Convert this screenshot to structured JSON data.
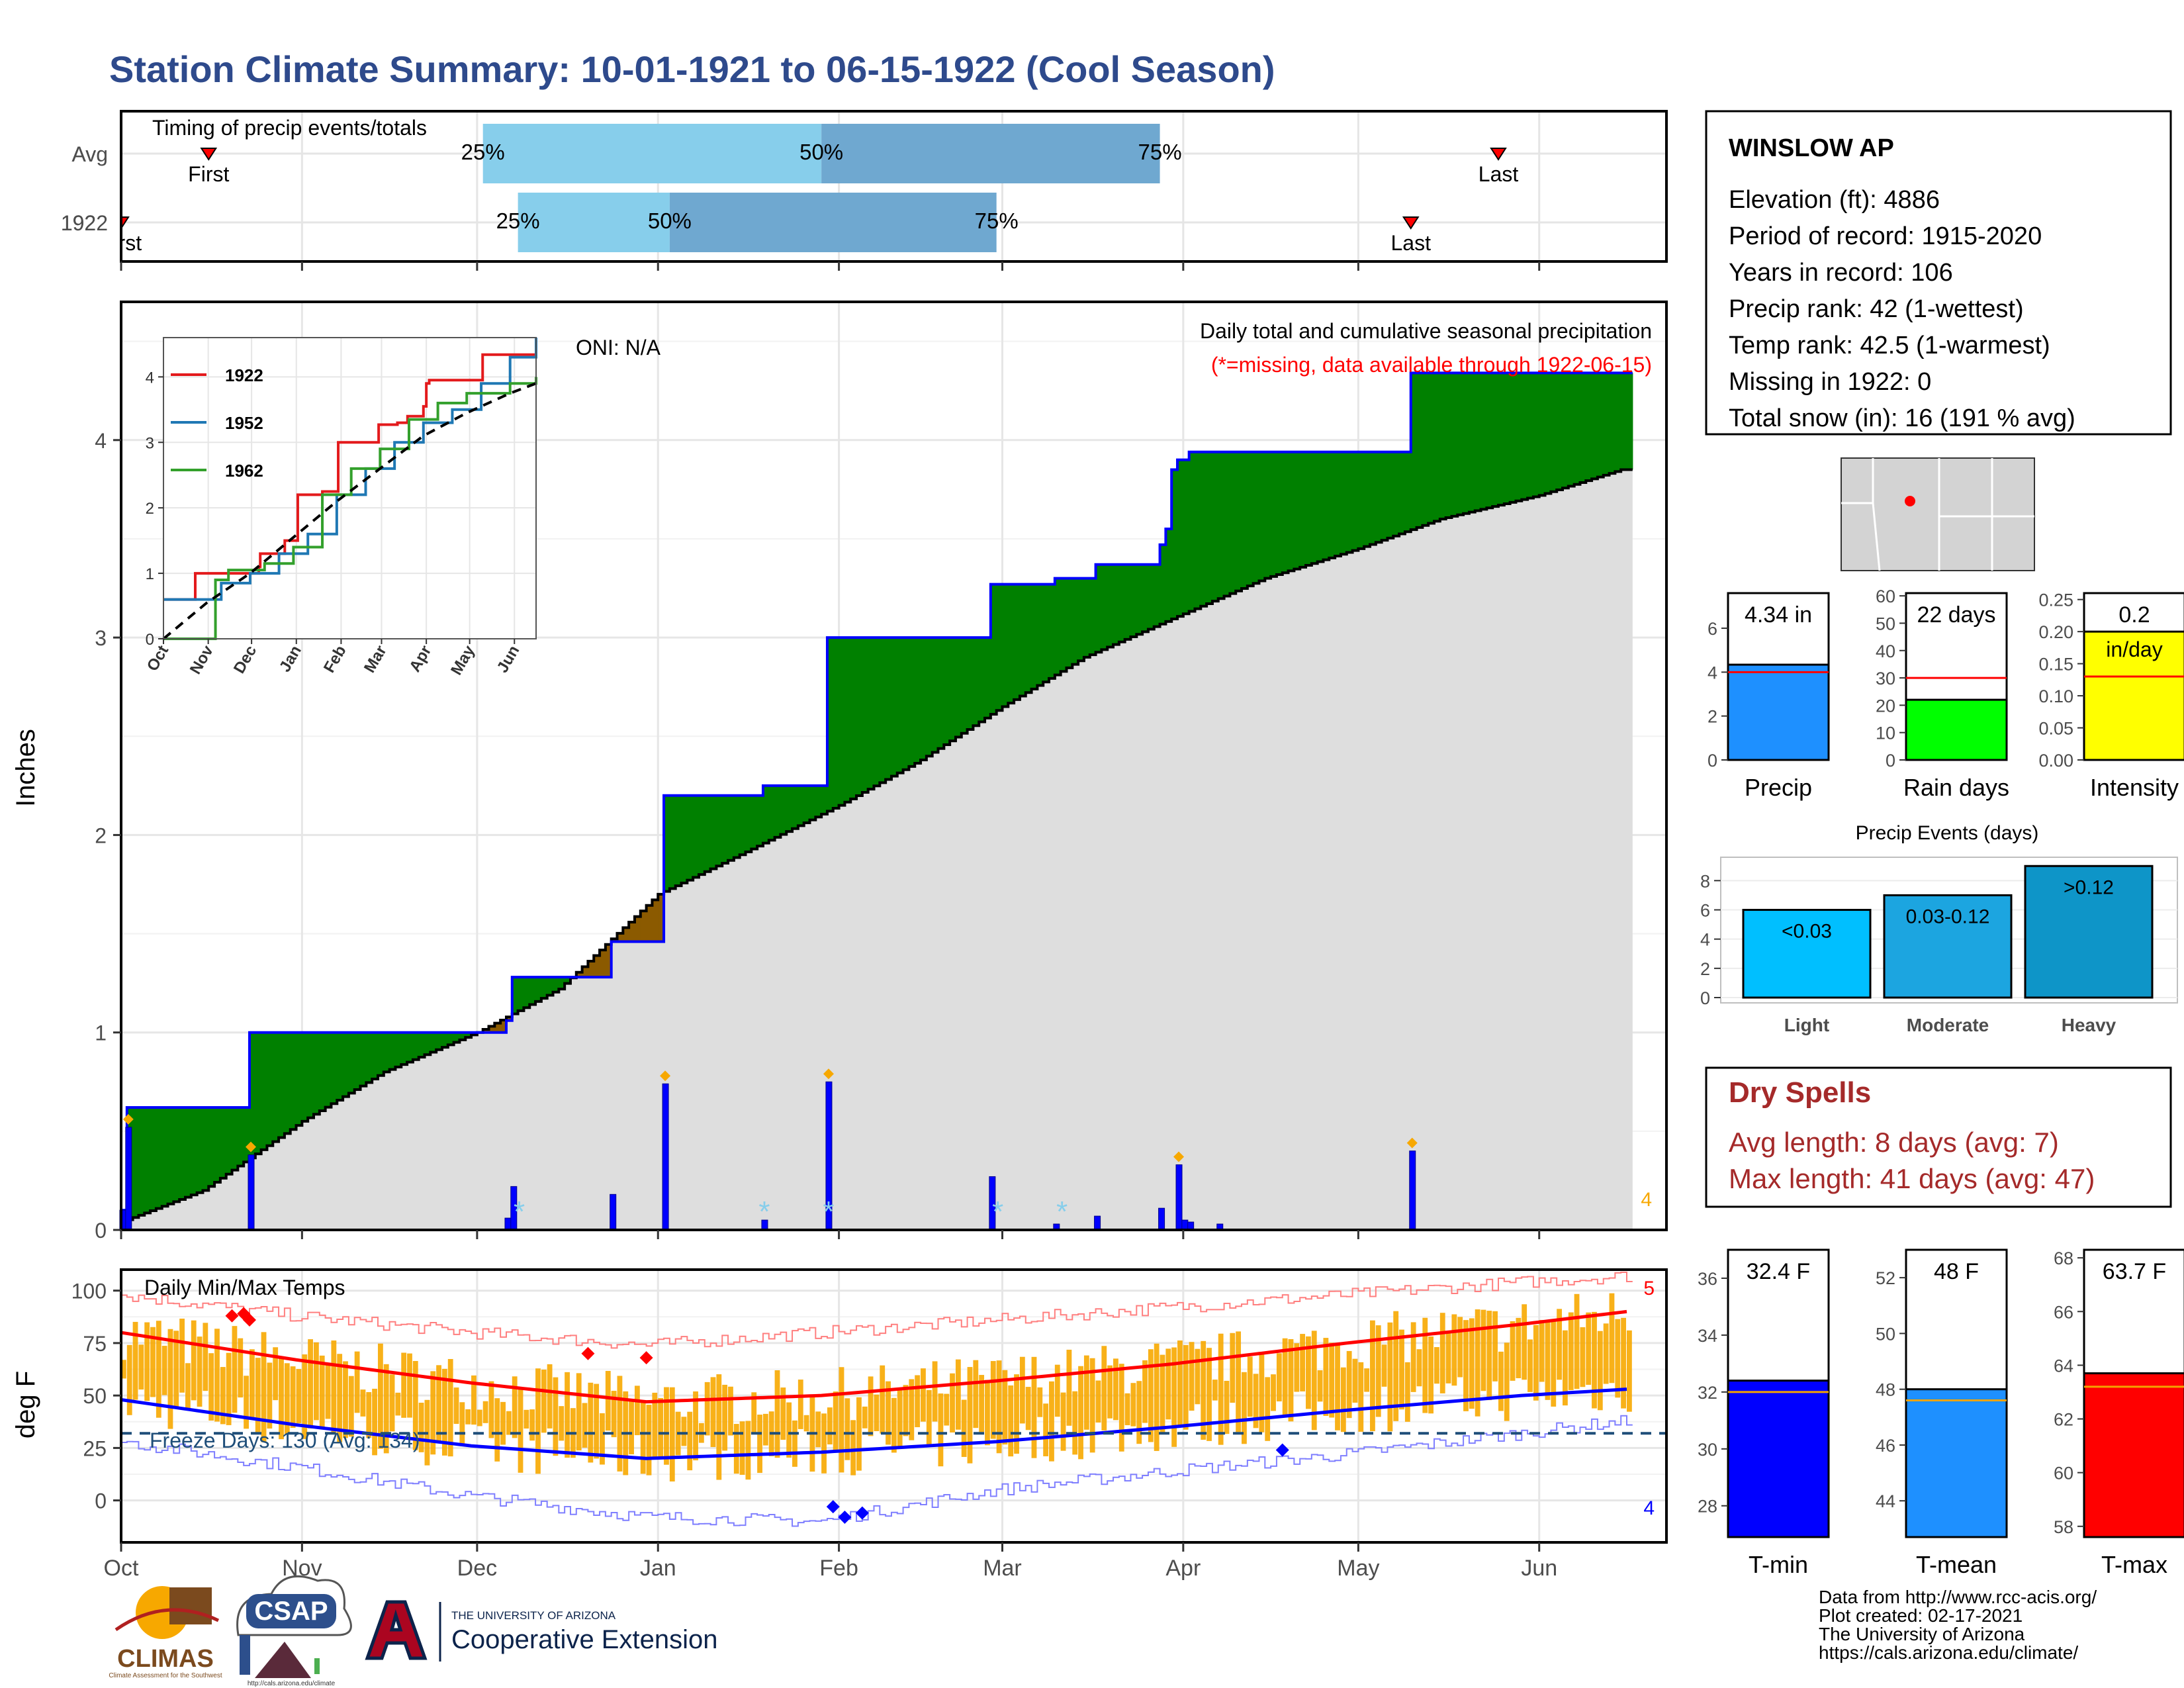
{
  "title": "Station Climate Summary: 10-01-1921 to 06-15-1922 (Cool Season)",
  "colors": {
    "title": "#2e4a8c",
    "green": "#008000",
    "brown": "#8b5a00",
    "blue": "#0000ff",
    "red": "#ff0000",
    "orange": "#f7a800",
    "light_blue": "#87ceeb",
    "steel_blue": "#6fa8d0",
    "dry_spell": "#a52a2a",
    "grey_fill": "#dedede"
  },
  "timing": {
    "caption": "Timing of precip events/totals",
    "rows": [
      {
        "label": "Avg",
        "first_label": "First",
        "last_label": "Last",
        "first_date": "1921-10-16",
        "last_date": "1922-05-25",
        "p25_date": "1921-12-02",
        "p50_date": "1922-01-29",
        "p75_date": "1922-03-28",
        "p25": "25%",
        "p50": "50%",
        "p75": "75%"
      },
      {
        "label": "1922",
        "first_label": "First",
        "last_label": "Last",
        "first_date": "1921-10-01",
        "last_date": "1922-05-10",
        "p25_date": "1921-12-08",
        "p50_date": "1922-01-03",
        "p75_date": "1922-02-28",
        "p25": "25%",
        "p50": "50%",
        "p75": "75%"
      }
    ]
  },
  "station": {
    "name": "WINSLOW AP",
    "lines": [
      "Elevation (ft): 4886",
      "Period of record: 1915-2020",
      "Years in record: 106",
      "Precip rank: 42 (1-wettest)",
      "Temp rank: 42.5 (1-warmest)",
      "Missing in 1922: 0",
      "Total snow (in): 16 (191 % avg)"
    ]
  },
  "precip_panel": {
    "ylabel": "Inches",
    "oni": "ONI: N/A",
    "caption": "Daily total and cumulative seasonal precipitation",
    "missing_note": "(*=missing, data available through 1922-06-15)",
    "corner_number": "4",
    "y_ticks": [
      "0",
      "1",
      "2",
      "3",
      "4"
    ],
    "x_months": [
      "Oct",
      "Nov",
      "Dec",
      "Jan",
      "Feb",
      "Mar",
      "Apr",
      "May",
      "Jun"
    ]
  },
  "inset": {
    "legend": [
      "1922",
      "1952",
      "1962"
    ],
    "y_ticks": [
      "0",
      "1",
      "2",
      "3",
      "4"
    ],
    "x_ticks": [
      "Oct",
      "Nov",
      "Dec",
      "Jan",
      "Feb",
      "Mar",
      "Apr",
      "May",
      "Jun"
    ]
  },
  "temp_panel": {
    "ylabel": "deg F",
    "caption": "Daily Min/Max Temps",
    "freeze": "Freeze Days: 130 (Avg: 134)",
    "corner_top": "5",
    "corner_bottom": "4",
    "y_ticks": [
      "0",
      "25",
      "50",
      "75",
      "100"
    ]
  },
  "summary_bars": {
    "precip": {
      "label": "Precip",
      "value_text": "4.34 in",
      "ticks": [
        "0",
        "2",
        "4",
        "6"
      ]
    },
    "rain_days": {
      "label": "Rain days",
      "value_text": "22 days",
      "ticks": [
        "0",
        "10",
        "20",
        "30",
        "40",
        "50",
        "60"
      ]
    },
    "intensity": {
      "label": "Intensity",
      "value_text": "0.2",
      "unit": "in/day",
      "ticks": [
        "0.00",
        "0.05",
        "0.10",
        "0.15",
        "0.20",
        "0.25"
      ]
    }
  },
  "events": {
    "title": "Precip Events (days)",
    "ticks": [
      "0",
      "2",
      "4",
      "6",
      "8"
    ],
    "bars": [
      {
        "label": "Light",
        "range": "<0.03"
      },
      {
        "label": "Moderate",
        "range": "0.03-0.12"
      },
      {
        "label": "Heavy",
        "range": ">0.12"
      }
    ]
  },
  "dry_spells": {
    "title": "Dry Spells",
    "avg": "Avg length: 8 days (avg: 7)",
    "max": "Max length: 41 days (avg: 47)"
  },
  "temp_bars": {
    "tmin": {
      "label": "T-min",
      "value_text": "32.4 F",
      "ticks": [
        "28",
        "30",
        "32",
        "34",
        "36"
      ]
    },
    "tmean": {
      "label": "T-mean",
      "value_text": "48 F",
      "ticks": [
        "44",
        "46",
        "48",
        "50",
        "52"
      ]
    },
    "tmax": {
      "label": "T-max",
      "value_text": "63.7 F",
      "ticks": [
        "58",
        "60",
        "62",
        "64",
        "66",
        "68"
      ]
    }
  },
  "footer": {
    "lines": [
      "Data from http://www.rcc-acis.org/",
      "Plot created: 02-17-2021",
      "The University of Arizona",
      "https://cals.arizona.edu/climate/"
    ],
    "logos": {
      "climas": "CLIMAS",
      "climas_sub": "Climate Assessment for the Southwest",
      "csap": "CSAP",
      "csap_sub": "http://cals.arizona.edu/climate",
      "ua_small": "THE UNIVERSITY OF ARIZONA",
      "ua_big": "Cooperative Extension"
    }
  },
  "chart_data": [
    {
      "type": "line",
      "title": "Daily total and cumulative seasonal precipitation",
      "ylabel": "Inches",
      "ylim": [
        0,
        4.7
      ],
      "x_start": "1921-10-01",
      "x_end": "1922-06-15",
      "cumulative_1922": [
        [
          "1921-10-01",
          0.1
        ],
        [
          "1921-10-02",
          0.62
        ],
        [
          "1921-10-23",
          1.0
        ],
        [
          "1921-12-06",
          1.06
        ],
        [
          "1921-12-07",
          1.28
        ],
        [
          "1921-12-24",
          1.46
        ],
        [
          "1922-01-02",
          2.2
        ],
        [
          "1922-01-19",
          2.25
        ],
        [
          "1922-01-30",
          3.0
        ],
        [
          "1922-02-27",
          3.27
        ],
        [
          "1922-03-10",
          3.3
        ],
        [
          "1922-03-17",
          3.37
        ],
        [
          "1922-03-28",
          3.47
        ],
        [
          "1922-03-29",
          3.55
        ],
        [
          "1922-03-30",
          3.85
        ],
        [
          "1922-03-31",
          3.9
        ],
        [
          "1922-04-02",
          3.94
        ],
        [
          "1922-05-10",
          4.34
        ],
        [
          "1922-06-15",
          4.34
        ]
      ],
      "cumulative_avg": [
        [
          "1921-10-01",
          0.04
        ],
        [
          "1921-10-15",
          0.2
        ],
        [
          "1921-11-01",
          0.55
        ],
        [
          "1921-11-15",
          0.8
        ],
        [
          "1921-12-01",
          1.0
        ],
        [
          "1921-12-15",
          1.22
        ],
        [
          "1922-01-01",
          1.7
        ],
        [
          "1922-01-15",
          1.9
        ],
        [
          "1922-02-01",
          2.15
        ],
        [
          "1922-02-15",
          2.38
        ],
        [
          "1922-03-01",
          2.65
        ],
        [
          "1922-03-15",
          2.9
        ],
        [
          "1922-04-01",
          3.12
        ],
        [
          "1922-04-15",
          3.3
        ],
        [
          "1922-05-01",
          3.45
        ],
        [
          "1922-05-15",
          3.6
        ],
        [
          "1922-06-01",
          3.72
        ],
        [
          "1922-06-15",
          3.85
        ]
      ],
      "daily_1922": [
        [
          "1921-10-01",
          0.1
        ],
        [
          "1921-10-02",
          0.52
        ],
        [
          "1921-10-23",
          0.38
        ],
        [
          "1921-12-06",
          0.06
        ],
        [
          "1921-12-07",
          0.22
        ],
        [
          "1921-12-24",
          0.18
        ],
        [
          "1922-01-02",
          0.74
        ],
        [
          "1922-01-19",
          0.05
        ],
        [
          "1922-01-30",
          0.75
        ],
        [
          "1922-02-27",
          0.27
        ],
        [
          "1922-03-10",
          0.03
        ],
        [
          "1922-03-17",
          0.07
        ],
        [
          "1922-03-28",
          0.11
        ],
        [
          "1922-03-31",
          0.33
        ],
        [
          "1922-04-01",
          0.05
        ],
        [
          "1922-04-02",
          0.04
        ],
        [
          "1922-04-07",
          0.03
        ],
        [
          "1922-05-10",
          0.4
        ]
      ],
      "snow_days": [
        "1921-12-08",
        "1922-01-19",
        "1922-01-30",
        "1922-02-28",
        "1922-03-11"
      ]
    },
    {
      "type": "line",
      "title": "Cumulative precipitation, comparison years",
      "series": [
        {
          "name": "1922",
          "values": [
            [
              0,
              0.6
            ],
            [
              22,
              1.0
            ],
            [
              66,
              1.1
            ],
            [
              67,
              1.3
            ],
            [
              84,
              1.5
            ],
            [
              93,
              2.2
            ],
            [
              110,
              2.25
            ],
            [
              121,
              3.0
            ],
            [
              149,
              3.27
            ],
            [
              162,
              3.3
            ],
            [
              169,
              3.4
            ],
            [
              180,
              3.55
            ],
            [
              182,
              3.9
            ],
            [
              184,
              3.95
            ],
            [
              221,
              4.34
            ],
            [
              258,
              4.34
            ]
          ]
        },
        {
          "name": "1952",
          "values": [
            [
              0,
              0.6
            ],
            [
              30,
              0.6
            ],
            [
              40,
              0.85
            ],
            [
              60,
              1.0
            ],
            [
              80,
              1.3
            ],
            [
              100,
              1.6
            ],
            [
              120,
              2.2
            ],
            [
              140,
              2.6
            ],
            [
              160,
              3.0
            ],
            [
              180,
              3.3
            ],
            [
              200,
              3.5
            ],
            [
              220,
              3.9
            ],
            [
              240,
              4.3
            ],
            [
              258,
              4.6
            ]
          ]
        },
        {
          "name": "1962",
          "values": [
            [
              0,
              0.0
            ],
            [
              35,
              0.0
            ],
            [
              36,
              0.9
            ],
            [
              45,
              1.05
            ],
            [
              70,
              1.15
            ],
            [
              90,
              1.4
            ],
            [
              110,
              2.2
            ],
            [
              130,
              2.6
            ],
            [
              150,
              2.9
            ],
            [
              170,
              3.35
            ],
            [
              190,
              3.6
            ],
            [
              210,
              3.75
            ],
            [
              240,
              3.9
            ],
            [
              258,
              4.0
            ]
          ]
        }
      ],
      "avg_curve": [
        [
          0,
          0.0
        ],
        [
          30,
          0.55
        ],
        [
          60,
          1.0
        ],
        [
          90,
          1.55
        ],
        [
          120,
          2.1
        ],
        [
          150,
          2.6
        ],
        [
          180,
          3.1
        ],
        [
          210,
          3.45
        ],
        [
          240,
          3.75
        ],
        [
          258,
          3.9
        ]
      ],
      "ylim": [
        0,
        4.6
      ]
    },
    {
      "type": "line",
      "title": "Daily Min/Max Temps",
      "ylabel": "deg F",
      "ylim": [
        -20,
        110
      ],
      "freeze_line": 32,
      "normal_max": [
        [
          0,
          80
        ],
        [
          30,
          67
        ],
        [
          60,
          56
        ],
        [
          90,
          47
        ],
        [
          120,
          50
        ],
        [
          150,
          57
        ],
        [
          180,
          65
        ],
        [
          210,
          75
        ],
        [
          240,
          84
        ],
        [
          258,
          90
        ]
      ],
      "normal_min": [
        [
          0,
          48
        ],
        [
          30,
          36
        ],
        [
          60,
          26
        ],
        [
          90,
          20
        ],
        [
          120,
          23
        ],
        [
          150,
          28
        ],
        [
          180,
          35
        ],
        [
          210,
          43
        ],
        [
          240,
          50
        ],
        [
          258,
          53
        ]
      ],
      "record_high": [
        [
          0,
          98
        ],
        [
          30,
          88
        ],
        [
          60,
          80
        ],
        [
          90,
          74
        ],
        [
          120,
          80
        ],
        [
          150,
          86
        ],
        [
          180,
          92
        ],
        [
          210,
          98
        ],
        [
          240,
          104
        ],
        [
          258,
          107
        ]
      ],
      "record_low": [
        [
          0,
          28
        ],
        [
          30,
          16
        ],
        [
          60,
          2
        ],
        [
          90,
          -8
        ],
        [
          120,
          -10
        ],
        [
          150,
          5
        ],
        [
          180,
          14
        ],
        [
          210,
          22
        ],
        [
          240,
          32
        ],
        [
          258,
          38
        ]
      ],
      "record_high_set": [
        [
          19,
          88
        ],
        [
          21,
          89
        ],
        [
          22,
          86
        ],
        [
          80,
          70
        ],
        [
          90,
          68
        ]
      ],
      "record_low_set": [
        [
          122,
          -3
        ],
        [
          124,
          -8
        ],
        [
          127,
          -6
        ],
        [
          199,
          24
        ]
      ]
    },
    {
      "type": "bar",
      "title": "Summary",
      "categories": [
        "Precip",
        "Rain days",
        "Intensity"
      ],
      "values": [
        4.34,
        22,
        0.2
      ],
      "averages": [
        4.0,
        30,
        0.13
      ]
    },
    {
      "type": "bar",
      "title": "Precip Events (days)",
      "categories": [
        "Light",
        "Moderate",
        "Heavy"
      ],
      "values": [
        6,
        7,
        9
      ]
    },
    {
      "type": "bar",
      "title": "Temperatures",
      "categories": [
        "T-min",
        "T-mean",
        "T-max"
      ],
      "values": [
        32.4,
        48,
        63.7
      ],
      "averages": [
        32.0,
        47.6,
        63.2
      ]
    }
  ]
}
